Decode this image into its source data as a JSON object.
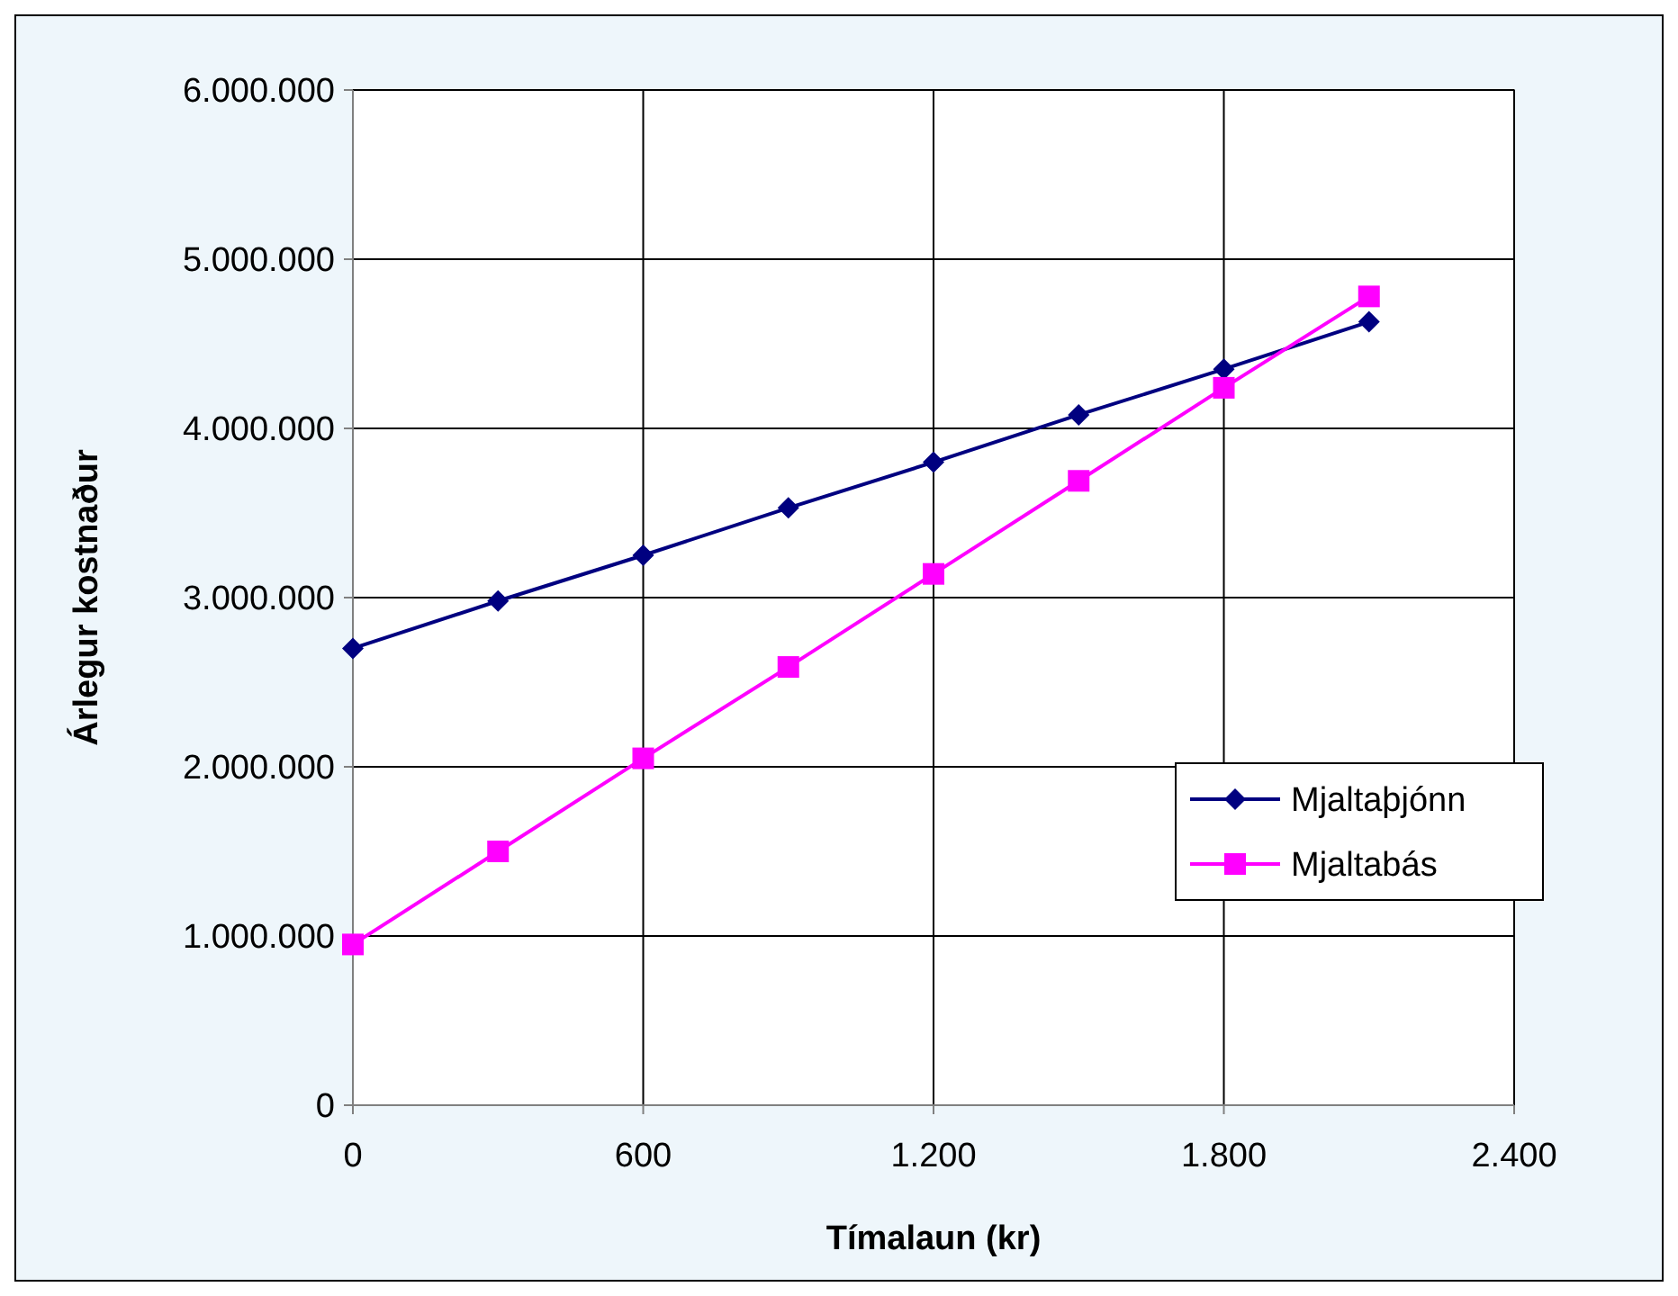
{
  "chart_data": {
    "type": "line",
    "xlabel": "Tímalaun (kr)",
    "ylabel": "Árlegur kostnaður",
    "x": [
      0,
      300,
      600,
      900,
      1200,
      1500,
      1800,
      2100
    ],
    "series": [
      {
        "name": "Mjaltaþjónn",
        "color": "#000080",
        "marker": "diamond",
        "values": [
          2700000,
          2980000,
          3250000,
          3530000,
          3800000,
          4080000,
          4350000,
          4630000
        ]
      },
      {
        "name": "Mjaltabás",
        "color": "#ff00ff",
        "marker": "square",
        "values": [
          950000,
          1500000,
          2050000,
          2590000,
          3140000,
          3690000,
          4240000,
          4780000
        ]
      }
    ],
    "xlim": [
      0,
      2400
    ],
    "xticks": [
      0,
      600,
      {
        "value": 1200,
        "label": "1.200"
      },
      {
        "value": 1800,
        "label": "1.800"
      },
      {
        "value": 2400,
        "label": "2.400"
      }
    ],
    "ylim": [
      0,
      6000000
    ],
    "yticks": [
      0,
      {
        "value": 1000000,
        "label": "1.000.000"
      },
      {
        "value": 2000000,
        "label": "2.000.000"
      },
      {
        "value": 3000000,
        "label": "3.000.000"
      },
      {
        "value": 4000000,
        "label": "4.000.000"
      },
      {
        "value": 5000000,
        "label": "5.000.000"
      },
      {
        "value": 6000000,
        "label": "6.000.000"
      }
    ],
    "grid": true,
    "legend": "right",
    "line_style": "solid"
  }
}
